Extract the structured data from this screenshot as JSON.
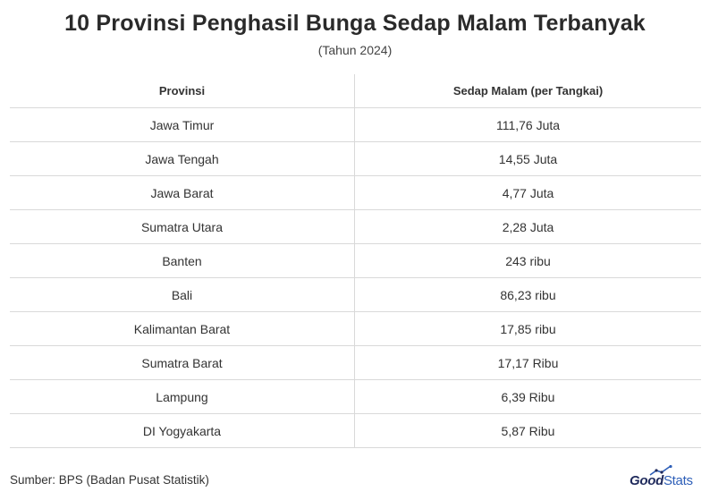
{
  "title": "10 Provinsi Penghasil Bunga Sedap Malam Terbanyak",
  "subtitle": "(Tahun 2024)",
  "table": {
    "headers": [
      "Provinsi",
      "Sedap Malam (per Tangkai)"
    ],
    "rows": [
      [
        "Jawa Timur",
        "111,76 Juta"
      ],
      [
        "Jawa Tengah",
        "14,55 Juta"
      ],
      [
        "Jawa Barat",
        "4,77 Juta"
      ],
      [
        "Sumatra Utara",
        "2,28 Juta"
      ],
      [
        "Banten",
        "243 ribu"
      ],
      [
        "Bali",
        "86,23 ribu"
      ],
      [
        "Kalimantan Barat",
        "17,85 ribu"
      ],
      [
        "Sumatra Barat",
        "17,17 Ribu"
      ],
      [
        "Lampung",
        "6,39 Ribu"
      ],
      [
        "DI Yogyakarta",
        "5,87 Ribu"
      ]
    ]
  },
  "source": "Sumber: BPS (Badan Pusat Statistik)",
  "logo": {
    "part1": "Good",
    "part2": "Stats",
    "colors": {
      "good": "#1f2a5c",
      "stats": "#2e5fb8"
    },
    "icon": "growth-chart-icon"
  }
}
